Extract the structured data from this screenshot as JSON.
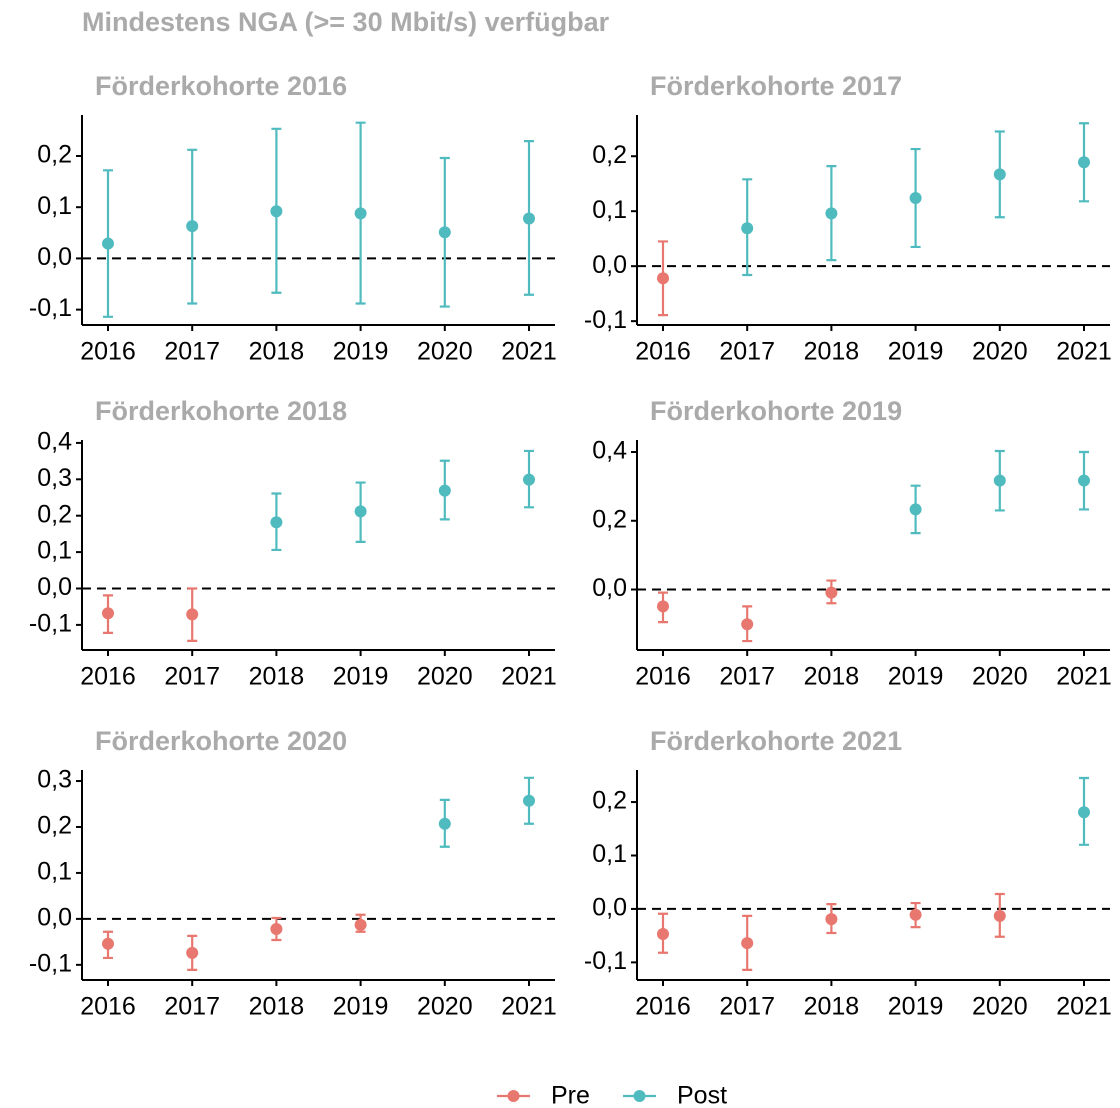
{
  "title": "Mindestens NGA (>= 30 Mbit/s) verfügbar",
  "series": [
    {
      "name": "Pre",
      "color": "#e8776f"
    },
    {
      "name": "Post",
      "color": "#4fbbbf"
    }
  ],
  "chart_data": [
    {
      "type": "errorbar",
      "title": "Förderkohorte 2016",
      "categories": [
        "2016",
        "2017",
        "2018",
        "2019",
        "2020",
        "2021"
      ],
      "ylim": [
        -0.13,
        0.28
      ],
      "yticks": [
        {
          "value": -0.1,
          "label": "-0,1"
        },
        {
          "value": 0,
          "label": "0,0"
        },
        {
          "value": 0.1,
          "label": "0,1"
        },
        {
          "value": 0.2,
          "label": "0,2"
        }
      ],
      "reference_line": 0,
      "series": [
        {
          "values": [
            null,
            null,
            null,
            null,
            null,
            null
          ],
          "ci_low": [
            null,
            null,
            null,
            null,
            null,
            null
          ],
          "ci_high": [
            null,
            null,
            null,
            null,
            null,
            null
          ]
        },
        {
          "values": [
            0.029,
            0.063,
            0.092,
            0.088,
            0.051,
            0.078
          ],
          "ci_low": [
            -0.114,
            -0.088,
            -0.067,
            -0.088,
            -0.094,
            -0.071
          ],
          "ci_high": [
            0.172,
            0.212,
            0.253,
            0.265,
            0.196,
            0.229
          ]
        }
      ]
    },
    {
      "type": "errorbar",
      "title": "Förderkohorte 2017",
      "categories": [
        "2016",
        "2017",
        "2018",
        "2019",
        "2020",
        "2021"
      ],
      "ylim": [
        -0.107,
        0.275
      ],
      "yticks": [
        {
          "value": -0.1,
          "label": "-0,1"
        },
        {
          "value": 0,
          "label": "0,0"
        },
        {
          "value": 0.1,
          "label": "0,1"
        },
        {
          "value": 0.2,
          "label": "0,2"
        }
      ],
      "reference_line": 0,
      "series": [
        {
          "values": [
            -0.022,
            null,
            null,
            null,
            null,
            null
          ],
          "ci_low": [
            -0.089,
            null,
            null,
            null,
            null,
            null
          ],
          "ci_high": [
            0.045,
            null,
            null,
            null,
            null,
            null
          ]
        },
        {
          "values": [
            null,
            0.069,
            0.096,
            0.124,
            0.167,
            0.189
          ],
          "ci_low": [
            null,
            -0.016,
            0.011,
            0.035,
            0.089,
            0.118
          ],
          "ci_high": [
            null,
            0.158,
            0.182,
            0.213,
            0.245,
            0.26
          ]
        }
      ]
    },
    {
      "type": "errorbar",
      "title": "Förderkohorte 2018",
      "categories": [
        "2016",
        "2017",
        "2018",
        "2019",
        "2020",
        "2021"
      ],
      "ylim": [
        -0.169,
        0.408
      ],
      "yticks": [
        {
          "value": -0.1,
          "label": "-0,1"
        },
        {
          "value": 0,
          "label": "0,0"
        },
        {
          "value": 0.1,
          "label": "0,1"
        },
        {
          "value": 0.2,
          "label": "0,2"
        },
        {
          "value": 0.3,
          "label": "0,3"
        },
        {
          "value": 0.4,
          "label": "0,4"
        }
      ],
      "reference_line": 0,
      "series": [
        {
          "values": [
            -0.068,
            -0.071,
            null,
            null,
            null,
            null
          ],
          "ci_low": [
            -0.122,
            -0.144,
            null,
            null,
            null,
            null
          ],
          "ci_high": [
            -0.019,
            0,
            null,
            null,
            null,
            null
          ]
        },
        {
          "values": [
            null,
            null,
            0.182,
            0.212,
            0.269,
            0.299
          ],
          "ci_low": [
            null,
            null,
            0.106,
            0.128,
            0.19,
            0.223
          ],
          "ci_high": [
            null,
            null,
            0.261,
            0.291,
            0.351,
            0.378
          ]
        }
      ]
    },
    {
      "type": "errorbar",
      "title": "Förderkohorte 2019",
      "categories": [
        "2016",
        "2017",
        "2018",
        "2019",
        "2020",
        "2021"
      ],
      "ylim": [
        -0.176,
        0.435
      ],
      "yticks": [
        {
          "value": 0,
          "label": "0,0"
        },
        {
          "value": 0.2,
          "label": "0,2"
        },
        {
          "value": 0.4,
          "label": "0,4"
        }
      ],
      "reference_line": 0,
      "series": [
        {
          "values": [
            -0.049,
            -0.101,
            -0.009,
            null,
            null,
            null
          ],
          "ci_low": [
            -0.095,
            -0.15,
            -0.04,
            null,
            null,
            null
          ],
          "ci_high": [
            -0.009,
            -0.049,
            0.026,
            null,
            null,
            null
          ]
        },
        {
          "values": [
            null,
            null,
            null,
            0.233,
            0.317,
            0.317
          ],
          "ci_low": [
            null,
            null,
            null,
            0.164,
            0.23,
            0.233
          ],
          "ci_high": [
            null,
            null,
            null,
            0.302,
            0.403,
            0.4
          ]
        }
      ]
    },
    {
      "type": "errorbar",
      "title": "Förderkohorte 2020",
      "categories": [
        "2016",
        "2017",
        "2018",
        "2019",
        "2020",
        "2021"
      ],
      "ylim": [
        -0.133,
        0.324
      ],
      "yticks": [
        {
          "value": -0.1,
          "label": "-0,1"
        },
        {
          "value": 0,
          "label": "0,0"
        },
        {
          "value": 0.1,
          "label": "0,1"
        },
        {
          "value": 0.2,
          "label": "0,2"
        },
        {
          "value": 0.3,
          "label": "0,3"
        }
      ],
      "reference_line": 0,
      "series": [
        {
          "values": [
            -0.054,
            -0.074,
            -0.022,
            -0.013,
            null,
            null
          ],
          "ci_low": [
            -0.085,
            -0.111,
            -0.046,
            -0.028,
            null,
            null
          ],
          "ci_high": [
            -0.028,
            -0.037,
            0.002,
            0.009,
            null,
            null
          ]
        },
        {
          "values": [
            null,
            null,
            null,
            null,
            0.207,
            0.257
          ],
          "ci_low": [
            null,
            null,
            null,
            null,
            0.157,
            0.207
          ],
          "ci_high": [
            null,
            null,
            null,
            null,
            0.259,
            0.307
          ]
        }
      ]
    },
    {
      "type": "errorbar",
      "title": "Förderkohorte 2021",
      "categories": [
        "2016",
        "2017",
        "2018",
        "2019",
        "2020",
        "2021"
      ],
      "ylim": [
        -0.133,
        0.26
      ],
      "yticks": [
        {
          "value": -0.1,
          "label": "-0,1"
        },
        {
          "value": 0,
          "label": "0,0"
        },
        {
          "value": 0.1,
          "label": "0,1"
        },
        {
          "value": 0.2,
          "label": "0,2"
        }
      ],
      "reference_line": 0,
      "series": [
        {
          "values": [
            -0.047,
            -0.064,
            -0.019,
            -0.011,
            -0.013,
            null
          ],
          "ci_low": [
            -0.082,
            -0.114,
            -0.045,
            -0.034,
            -0.052,
            null
          ],
          "ci_high": [
            -0.009,
            -0.013,
            0.009,
            0.011,
            0.028,
            null
          ]
        },
        {
          "values": [
            null,
            null,
            null,
            null,
            null,
            0.181
          ],
          "ci_low": [
            null,
            null,
            null,
            null,
            null,
            0.12
          ],
          "ci_high": [
            null,
            null,
            null,
            null,
            null,
            0.245
          ]
        }
      ]
    }
  ]
}
